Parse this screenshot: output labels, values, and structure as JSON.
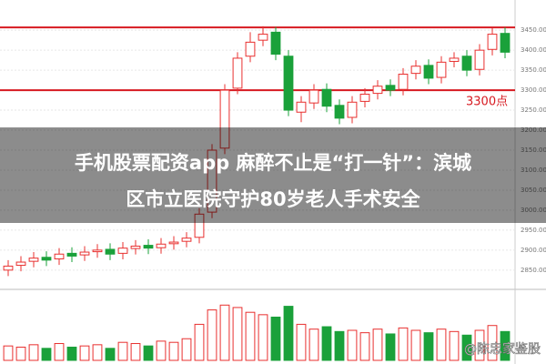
{
  "chart_data": {
    "type": "candlestick",
    "open": [
      2850,
      2862,
      2872,
      2882,
      2878,
      2892,
      2888,
      2896,
      2902,
      2892,
      2904,
      2912,
      2906,
      2916,
      2922,
      2932,
      2995,
      3155,
      3305,
      3385,
      3425,
      3445,
      3385,
      3245,
      3268,
      3302,
      3262,
      3232,
      3272,
      3292,
      3312,
      3302,
      3342,
      3362,
      3332,
      3372,
      3385,
      3352,
      3402,
      3442
    ],
    "high": [
      2875,
      2885,
      2895,
      2897,
      2905,
      2907,
      2910,
      2915,
      2917,
      2920,
      2925,
      2927,
      2930,
      2935,
      2945,
      3005,
      3165,
      3315,
      3395,
      3445,
      3460,
      3458,
      3400,
      3285,
      3315,
      3317,
      3277,
      3285,
      3305,
      3325,
      3327,
      3355,
      3375,
      3377,
      3385,
      3395,
      3400,
      3415,
      3455,
      3457
    ],
    "low": [
      2835,
      2847,
      2857,
      2860,
      2863,
      2870,
      2873,
      2881,
      2875,
      2877,
      2889,
      2890,
      2891,
      2901,
      2907,
      2917,
      2980,
      3140,
      3290,
      3370,
      3410,
      3375,
      3235,
      3220,
      3253,
      3245,
      3215,
      3217,
      3257,
      3277,
      3285,
      3287,
      3327,
      3315,
      3317,
      3357,
      3335,
      3337,
      3387,
      3380
    ],
    "close": [
      2860,
      2870,
      2880,
      2875,
      2890,
      2885,
      2895,
      2900,
      2890,
      2905,
      2910,
      2905,
      2915,
      2920,
      2930,
      2990,
      3150,
      3300,
      3380,
      3420,
      3440,
      3390,
      3250,
      3270,
      3300,
      3260,
      3230,
      3270,
      3290,
      3310,
      3300,
      3340,
      3360,
      3330,
      3370,
      3380,
      3350,
      3400,
      3440,
      3395
    ],
    "volume": [
      120,
      110,
      130,
      100,
      140,
      110,
      120,
      130,
      100,
      150,
      140,
      120,
      160,
      150,
      180,
      300,
      420,
      460,
      440,
      400,
      380,
      360,
      450,
      300,
      260,
      280,
      240,
      250,
      230,
      260,
      220,
      270,
      250,
      230,
      260,
      240,
      210,
      250,
      290,
      240
    ],
    "ylim": [
      2820,
      3480
    ],
    "yticks": [
      {
        "value": 2850,
        "label": "2850.00"
      },
      {
        "value": 2900,
        "label": "2900.00"
      },
      {
        "value": 2950,
        "label": "2950.00"
      },
      {
        "value": 3000,
        "label": "3000.00"
      },
      {
        "value": 3050,
        "label": "3050.00"
      },
      {
        "value": 3100,
        "label": "3100.00"
      },
      {
        "value": 3150,
        "label": "3150.00"
      },
      {
        "value": 3200,
        "label": "3200.00"
      },
      {
        "value": 3250,
        "label": "3250.00"
      },
      {
        "value": 3300,
        "label": "3300.00"
      },
      {
        "value": 3350,
        "label": "3350.00"
      },
      {
        "value": 3400,
        "label": "3400.00"
      },
      {
        "value": 3450,
        "label": "3450.00"
      }
    ],
    "volume_ylim": [
      0,
      500
    ],
    "up_color": "#e8302f",
    "down_color": "#1aa13a",
    "reference_lines": [
      3457,
      3300
    ],
    "reference_color": "#d71920",
    "annotation": "3300点"
  },
  "headline": {
    "lines": [
      "手机股票配资app 麻醉不止是“打一针”：滨城",
      "区市立医院守护80岁老人手术安全"
    ]
  },
  "watermark": "@陈忠家鉴股"
}
